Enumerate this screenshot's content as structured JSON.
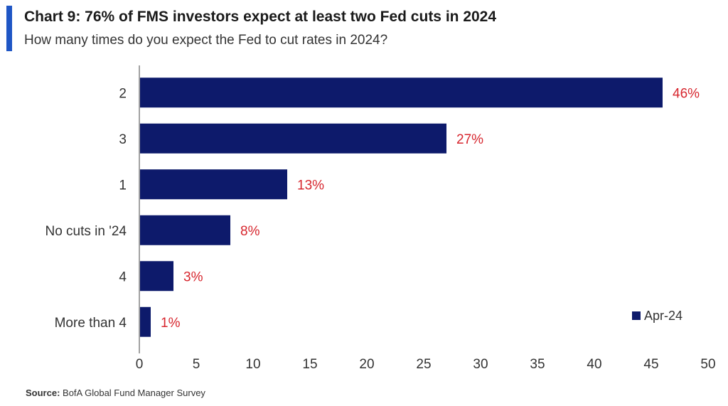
{
  "header": {
    "title": "Chart 9: 76% of FMS investors expect at least two Fed cuts in 2024",
    "subtitle": "How many times do you expect the Fed to cut rates in 2024?"
  },
  "footer": {
    "source_label": "Source:",
    "source_text": "BofA Global Fund Manager Survey"
  },
  "colors": {
    "bar": "#0d1a6b",
    "data_label": "#d7262e",
    "accent": "#1f56c5",
    "axis": "#444444"
  },
  "chart_data": {
    "type": "bar",
    "orientation": "horizontal",
    "categories": [
      "2",
      "3",
      "1",
      "No cuts in '24",
      "4",
      "More than 4"
    ],
    "series": [
      {
        "name": "Apr-24",
        "values": [
          46,
          27,
          13,
          8,
          3,
          1
        ]
      }
    ],
    "data_labels": [
      "46%",
      "27%",
      "13%",
      "8%",
      "3%",
      "1%"
    ],
    "xlim": [
      0,
      50
    ],
    "xticks": [
      0,
      5,
      10,
      15,
      20,
      25,
      30,
      35,
      40,
      45,
      50
    ],
    "grid": false,
    "legend_position": "bottom-right"
  }
}
